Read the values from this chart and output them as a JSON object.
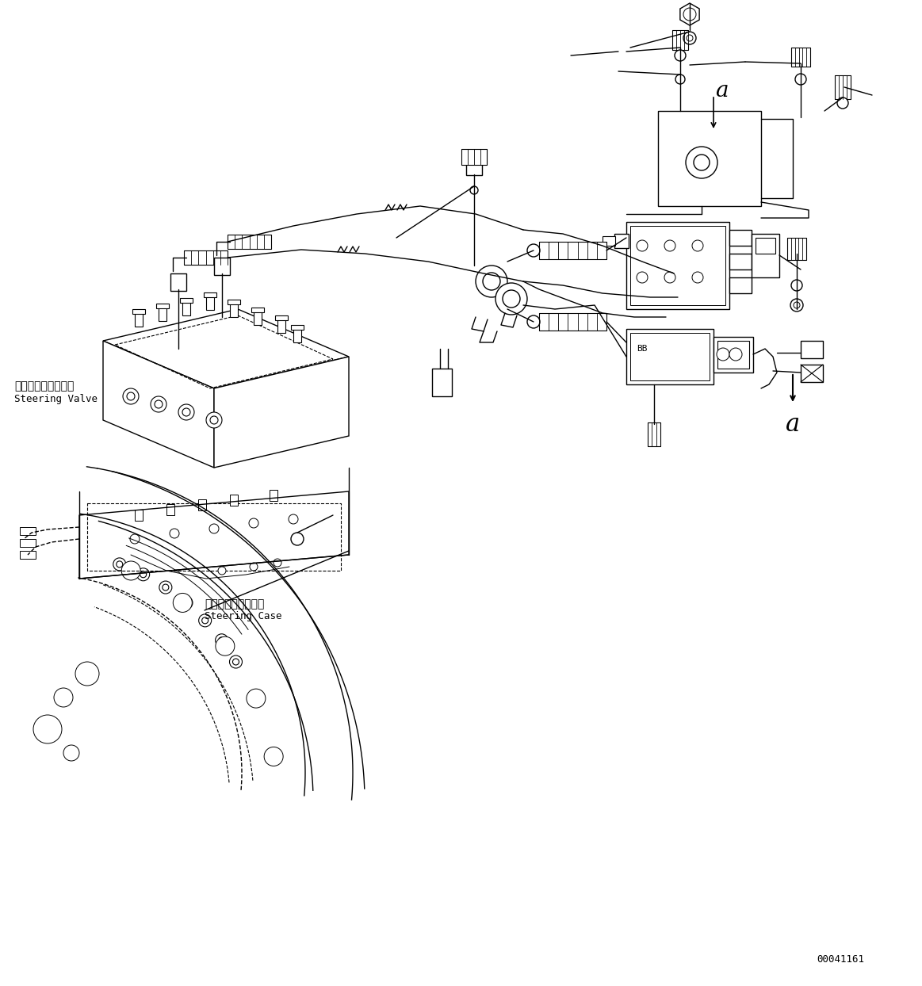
{
  "fig_width": 11.63,
  "fig_height": 12.44,
  "dpi": 100,
  "bg_color": "#ffffff",
  "line_color": "#000000",
  "part_number": "00041161",
  "label_sv_jp": "ステアリングバルブ",
  "label_sv_en": "Steering Valve",
  "label_sc_jp": "ステアリングケース",
  "label_sc_en": "Steering Case",
  "label_a": "a"
}
